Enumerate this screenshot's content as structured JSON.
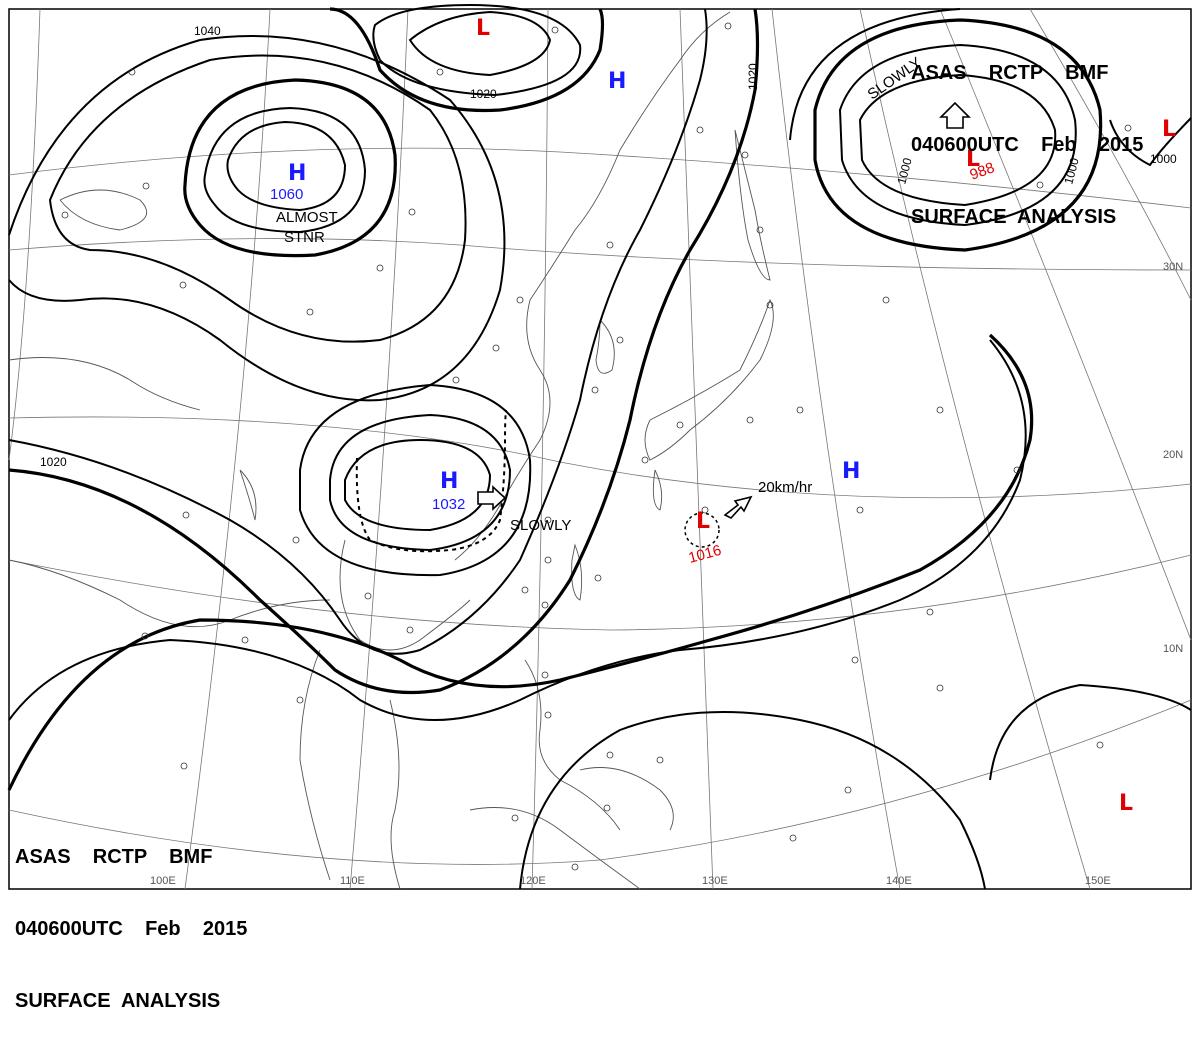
{
  "header_top": {
    "line1": "ASAS    RCTP    BMF",
    "line2": "040600UTC    Feb    2015",
    "line3": "SURFACE  ANALYSIS"
  },
  "header_bottom": {
    "line1": "ASAS    RCTP    BMF",
    "line2": "040600UTC    Feb    2015",
    "line3": "SURFACE  ANALYSIS"
  },
  "longitudes": [
    "110E",
    "120E",
    "130E",
    "140E",
    "150E",
    "100E"
  ],
  "latitudes": [
    "30N",
    "20N",
    "10N"
  ],
  "isobar_labels": [
    "1040",
    "1020",
    "1020",
    "1020",
    "1000",
    "1000",
    "1000"
  ],
  "pressure_systems": [
    {
      "type": "H",
      "value": "1060",
      "note": "ALMOST STNR"
    },
    {
      "type": "H",
      "value": "1032",
      "note": "SLOWLY"
    },
    {
      "type": "H",
      "value": ""
    },
    {
      "type": "H",
      "value": ""
    },
    {
      "type": "L",
      "value": ""
    },
    {
      "type": "L",
      "value": "988",
      "note": "SLOWLY"
    },
    {
      "type": "L",
      "value": ""
    },
    {
      "type": "L",
      "value": "1016",
      "note": "20km/hr"
    },
    {
      "type": "L",
      "value": ""
    }
  ],
  "colors": {
    "high": "#1a1aff",
    "low": "#e00000"
  }
}
